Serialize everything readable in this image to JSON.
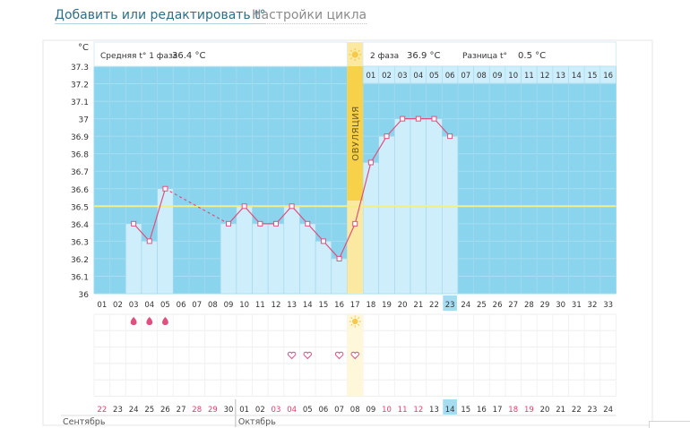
{
  "tabs": {
    "edit": "Добавить или редактировать t°",
    "settings": "Настройки цикла"
  },
  "phase1": {
    "label": "Средняя t° 1 фаза",
    "value": "36.4 °C"
  },
  "phase2": {
    "label": "2 фаза",
    "value": "36.9 °C",
    "diff_label": "Разница t°",
    "diff_value": "0.5 °C"
  },
  "ovulation_label": "ОВУЛЯЦИЯ",
  "ylabel": "°C",
  "colors": {
    "bg_blue": "#8ad4ee",
    "bar": "#cdeefa",
    "line": "#e0507f",
    "ovulation": "#fbe9a1",
    "ovulation_strip": "#f7d14a",
    "coverline": "#f2ef8a",
    "today": "#a5dcf0",
    "red_date": "#e03d6c"
  },
  "chart_data": {
    "type": "line",
    "ylim": [
      36.0,
      37.3
    ],
    "yticks": [
      "37.3",
      "37.2",
      "37.1",
      "37",
      "36.9",
      "36.8",
      "36.7",
      "36.6",
      "36.5",
      "36.4",
      "36.3",
      "36.2",
      "36.1",
      "36"
    ],
    "cycle_days": [
      "01",
      "02",
      "03",
      "04",
      "05",
      "06",
      "07",
      "08",
      "09",
      "10",
      "11",
      "12",
      "13",
      "14",
      "15",
      "16",
      "17",
      "18",
      "19",
      "20",
      "21",
      "22",
      "23",
      "24",
      "25",
      "26",
      "27",
      "28",
      "29",
      "30",
      "31",
      "32",
      "33"
    ],
    "phase2_days": [
      "01",
      "02",
      "03",
      "04",
      "05",
      "06",
      "07",
      "08",
      "09",
      "10",
      "11",
      "12",
      "13",
      "14",
      "15",
      "16"
    ],
    "temperatures": [
      null,
      null,
      36.4,
      36.3,
      36.6,
      null,
      null,
      null,
      36.4,
      36.5,
      36.4,
      36.4,
      36.5,
      36.4,
      36.3,
      36.2,
      36.4,
      36.75,
      36.9,
      37.0,
      37.0,
      37.0,
      36.9,
      null,
      null,
      null,
      null,
      null,
      null,
      null,
      null,
      null,
      null
    ],
    "coverline": 36.5,
    "ovulation_day": 17,
    "today_day": 23,
    "dates": [
      "22",
      "23",
      "24",
      "25",
      "26",
      "27",
      "28",
      "29",
      "30",
      "01",
      "02",
      "03",
      "04",
      "05",
      "06",
      "07",
      "08",
      "09",
      "10",
      "11",
      "12",
      "13",
      "14",
      "15",
      "16",
      "17",
      "18",
      "19",
      "20",
      "21",
      "22",
      "23",
      "24"
    ],
    "red_dates": [
      1,
      7,
      8,
      12,
      13,
      19,
      20,
      21,
      27,
      28
    ],
    "period_days": [
      3,
      4,
      5
    ],
    "heart_days": [
      13,
      14,
      16,
      17
    ],
    "months": [
      "Сентябрь",
      "Октябрь"
    ]
  }
}
